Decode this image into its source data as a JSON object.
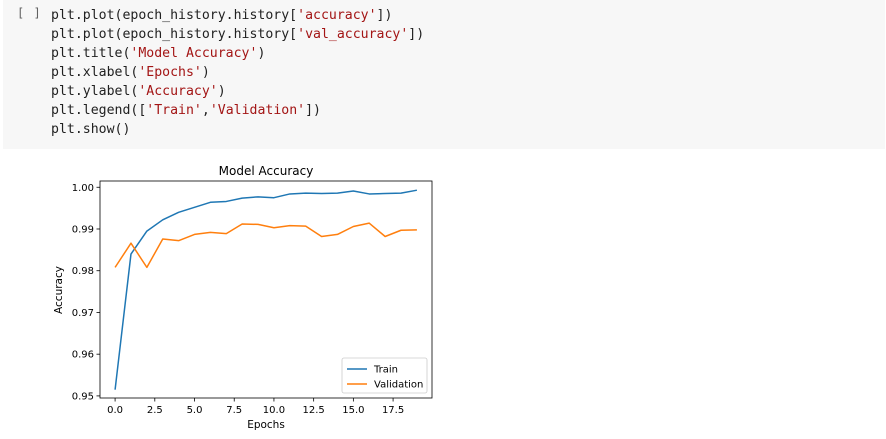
{
  "cell": {
    "run_indicator": "[ ]",
    "code_lines": [
      [
        {
          "t": "plt.plot(epoch_history.history["
        },
        {
          "s": "'accuracy'"
        },
        {
          "t": "])"
        }
      ],
      [
        {
          "t": "plt.plot(epoch_history.history["
        },
        {
          "s": "'val_accuracy'"
        },
        {
          "t": "])"
        }
      ],
      [
        {
          "t": "plt.title("
        },
        {
          "s": "'Model Accuracy'"
        },
        {
          "t": ")"
        }
      ],
      [
        {
          "t": "plt.xlabel("
        },
        {
          "s": "'Epochs'"
        },
        {
          "t": ")"
        }
      ],
      [
        {
          "t": "plt.ylabel("
        },
        {
          "s": "'Accuracy'"
        },
        {
          "t": ")"
        }
      ],
      [
        {
          "t": "plt.legend(["
        },
        {
          "s": "'Train'"
        },
        {
          "t": ","
        },
        {
          "s": "'Validation'"
        },
        {
          "t": "])"
        }
      ],
      [
        {
          "t": "plt.show()"
        }
      ]
    ]
  },
  "chart_data": {
    "type": "line",
    "title": "Model Accuracy",
    "xlabel": "Epochs",
    "ylabel": "Accuracy",
    "xlim": [
      -0.95,
      19.95
    ],
    "ylim": [
      0.9495,
      1.0015
    ],
    "xticks": [
      0.0,
      2.5,
      5.0,
      7.5,
      10.0,
      12.5,
      15.0,
      17.5
    ],
    "xtick_labels": [
      "0.0",
      "2.5",
      "5.0",
      "7.5",
      "10.0",
      "12.5",
      "15.0",
      "17.5"
    ],
    "yticks": [
      0.95,
      0.96,
      0.97,
      0.98,
      0.99,
      1.0
    ],
    "ytick_labels": [
      "0.95",
      "0.96",
      "0.97",
      "0.98",
      "0.99",
      "1.00"
    ],
    "legend_position": "lower-right",
    "x": [
      0,
      1,
      2,
      3,
      4,
      5,
      6,
      7,
      8,
      9,
      10,
      11,
      12,
      13,
      14,
      15,
      16,
      17,
      18,
      19
    ],
    "series": [
      {
        "name": "Train",
        "color": "#1f77b4",
        "values": [
          0.9515,
          0.984,
          0.9895,
          0.9922,
          0.994,
          0.9952,
          0.9964,
          0.9966,
          0.9974,
          0.9977,
          0.9975,
          0.9984,
          0.9986,
          0.9985,
          0.9986,
          0.9991,
          0.9984,
          0.9985,
          0.9986,
          0.9993
        ]
      },
      {
        "name": "Validation",
        "color": "#ff7f0e",
        "values": [
          0.9808,
          0.9866,
          0.9808,
          0.9876,
          0.9872,
          0.9887,
          0.9892,
          0.9889,
          0.9912,
          0.9911,
          0.9903,
          0.9908,
          0.9907,
          0.9882,
          0.9887,
          0.9906,
          0.9914,
          0.9882,
          0.9897,
          0.9898
        ]
      }
    ]
  }
}
